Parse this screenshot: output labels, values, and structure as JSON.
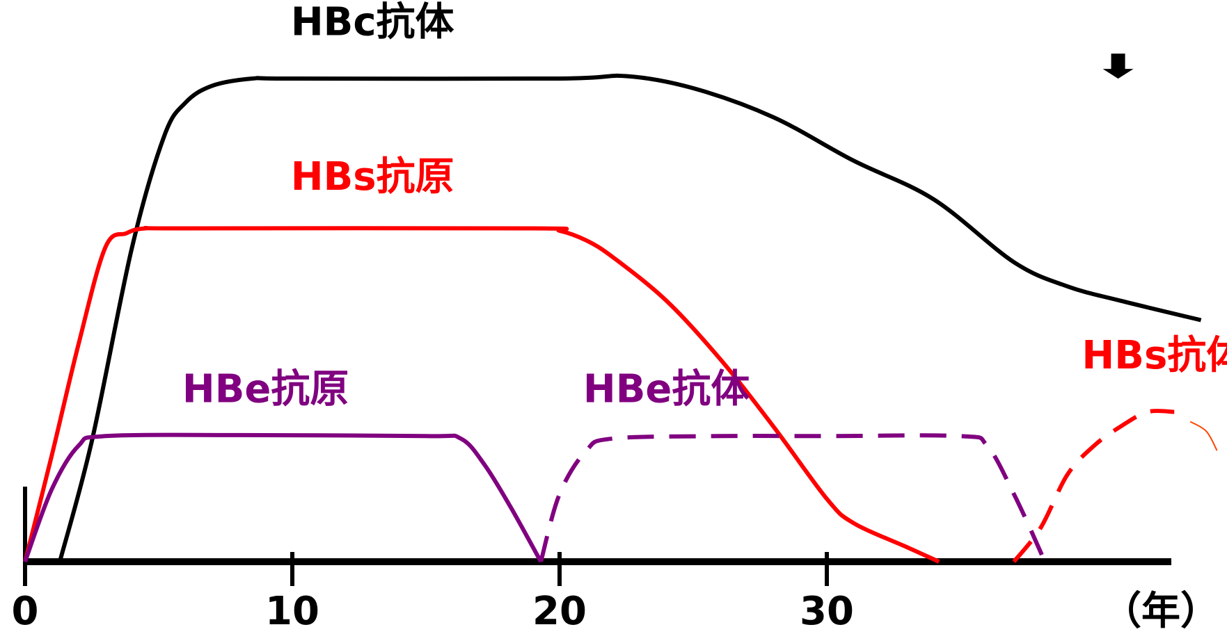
{
  "chart_data": {
    "type": "line",
    "xlabel": "",
    "ylabel": "",
    "xlim": [
      0,
      44
    ],
    "ylim": [
      0,
      1
    ],
    "x_unit_label": "（年）",
    "x_ticks": [
      0,
      10,
      20,
      30
    ],
    "x_tick_labels": [
      "0",
      "10",
      "20",
      "30"
    ],
    "grid": false,
    "annotations": [
      {
        "name": "down-arrow",
        "x": 40.9,
        "y": 1.02
      }
    ],
    "series": [
      {
        "name": "HBc抗体",
        "color": "#000000",
        "dashed": false,
        "label_at": [
          13,
          1.09
        ],
        "points": [
          [
            1.3,
            0
          ],
          [
            2.5,
            0.25
          ],
          [
            4,
            0.65
          ],
          [
            5.2,
            0.88
          ],
          [
            6,
            0.95
          ],
          [
            7,
            0.985
          ],
          [
            8.5,
            1
          ],
          [
            10,
            1
          ],
          [
            20,
            1
          ],
          [
            22.5,
            1.005
          ],
          [
            25,
            0.98
          ],
          [
            28,
            0.92
          ],
          [
            31,
            0.83
          ],
          [
            34,
            0.75
          ],
          [
            37,
            0.62
          ],
          [
            39,
            0.57
          ],
          [
            41,
            0.54
          ],
          [
            44,
            0.5
          ]
        ]
      },
      {
        "name": "HBs抗原",
        "color": "#ff0000",
        "dashed": false,
        "label_at": [
          13,
          0.77
        ],
        "points": [
          [
            0,
            0
          ],
          [
            1,
            0.22
          ],
          [
            2,
            0.45
          ],
          [
            3,
            0.65
          ],
          [
            3.8,
            0.68
          ],
          [
            4.5,
            0.69
          ],
          [
            6,
            0.69
          ],
          [
            19,
            0.69
          ],
          [
            20,
            0.685
          ],
          [
            21,
            0.665
          ],
          [
            22,
            0.63
          ],
          [
            24,
            0.54
          ],
          [
            26,
            0.42
          ],
          [
            28,
            0.28
          ],
          [
            30,
            0.13
          ],
          [
            31,
            0.08
          ],
          [
            33,
            0.03
          ],
          [
            34.2,
            0
          ]
        ]
      },
      {
        "name": "HBe抗原",
        "color": "#800080",
        "dashed": false,
        "label_at": [
          9,
          0.33
        ],
        "points": [
          [
            0,
            0
          ],
          [
            1,
            0.15
          ],
          [
            2,
            0.24
          ],
          [
            3,
            0.26
          ],
          [
            8,
            0.262
          ],
          [
            15,
            0.26
          ],
          [
            16.3,
            0.255
          ],
          [
            17.2,
            0.2
          ],
          [
            18.2,
            0.11
          ],
          [
            19.3,
            0
          ]
        ]
      },
      {
        "name": "HBe抗体",
        "color": "#800080",
        "dashed": true,
        "label_at": [
          24,
          0.33
        ],
        "points": [
          [
            19.3,
            0
          ],
          [
            20,
            0.14
          ],
          [
            21,
            0.23
          ],
          [
            22,
            0.255
          ],
          [
            26,
            0.26
          ],
          [
            30,
            0.26
          ],
          [
            35,
            0.26
          ],
          [
            36,
            0.24
          ],
          [
            37,
            0.14
          ],
          [
            38,
            0.02
          ],
          [
            38.1,
            0
          ]
        ]
      },
      {
        "name": "HBs抗体",
        "color": "#ff0000",
        "dashed": true,
        "label_at": [
          42.6,
          0.4
        ],
        "points": [
          [
            37,
            0
          ],
          [
            38,
            0.07
          ],
          [
            39,
            0.18
          ],
          [
            40,
            0.24
          ],
          [
            41,
            0.28
          ],
          [
            42,
            0.31
          ],
          [
            43,
            0.31
          ]
        ]
      },
      {
        "name": "",
        "color": "#ff4400",
        "dashed": false,
        "thin": true,
        "points": [
          [
            43.6,
            0.29
          ],
          [
            44.2,
            0.27
          ],
          [
            44.6,
            0.23
          ]
        ]
      }
    ]
  }
}
